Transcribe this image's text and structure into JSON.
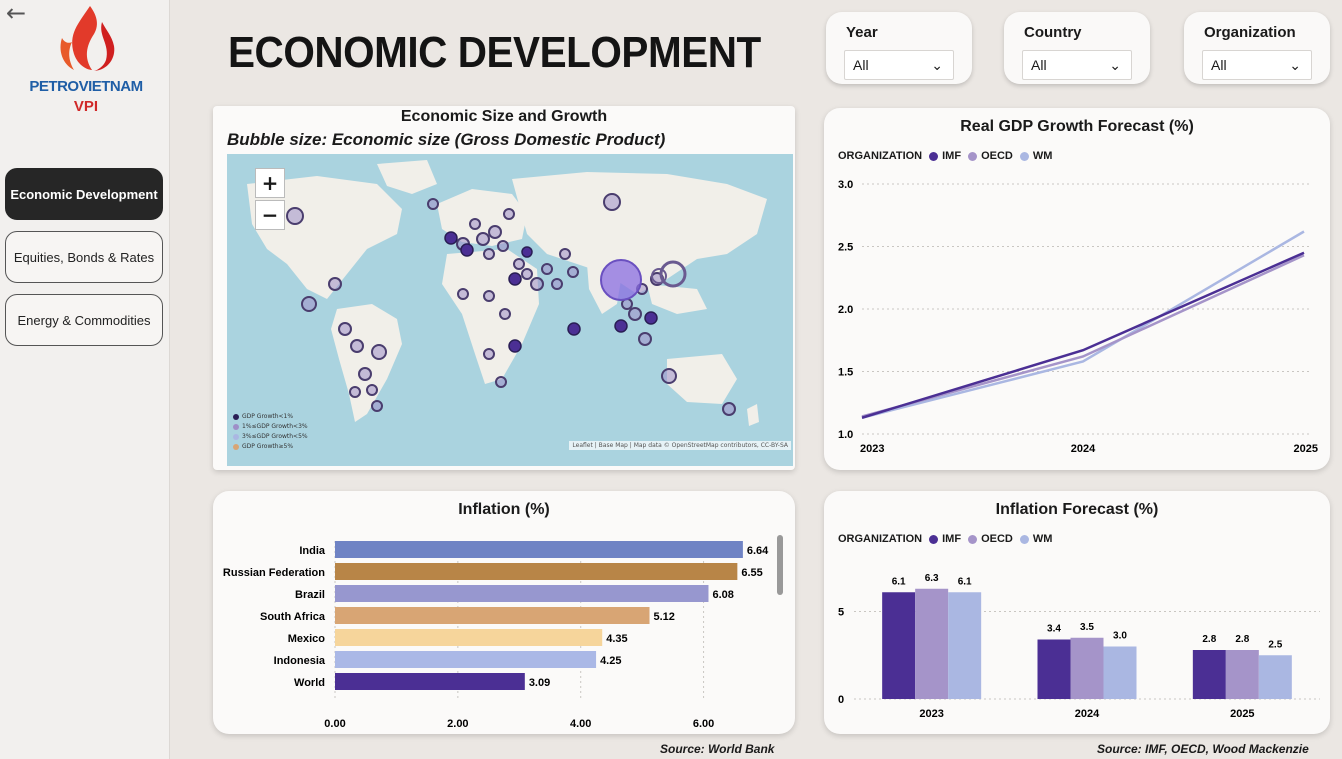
{
  "brand": {
    "name": "PETROVIETNAM",
    "sub": "VPI"
  },
  "nav": [
    {
      "label": "Economic Development",
      "active": true
    },
    {
      "label": "Equities, Bonds & Rates",
      "active": false
    },
    {
      "label": "Energy & Commodities",
      "active": false
    }
  ],
  "page_title": "ECONOMIC DEVELOPMENT",
  "filters": [
    {
      "label": "Year",
      "value": "All"
    },
    {
      "label": "Country",
      "value": "All"
    },
    {
      "label": "Organization",
      "value": "All"
    }
  ],
  "map": {
    "title": "Economic Size and Growth",
    "subtitle": "Bubble size: Economic size (Gross Domestic Product)",
    "legend": [
      "GDP Growth<1%",
      "1%≤GDP Growth<3%",
      "3%≤GDP Growth<5%",
      "GDP Growth≥5%"
    ],
    "attribution": "Leaflet | Base Map | Map data © OpenStreetMap contributors, CC-BY-SA",
    "zoom_in": "+",
    "zoom_out": "−"
  },
  "gdp_forecast": {
    "title": "Real GDP Growth Forecast (%)",
    "legend_label": "ORGANIZATION",
    "colors": {
      "IMF": "#4b2f94",
      "OECD": "#a594c9",
      "WM": "#aab7e2"
    }
  },
  "inflation_bar": {
    "title": "Inflation (%)",
    "source": "Source: World Bank"
  },
  "inflation_forecast": {
    "title": "Inflation Forecast (%)",
    "legend_label": "ORGANIZATION",
    "source": "Source: IMF, OECD, Wood Mackenzie"
  },
  "chart_data": [
    {
      "type": "line",
      "title": "Real GDP Growth Forecast (%)",
      "x": [
        "2023",
        "2024",
        "2025"
      ],
      "ylim": [
        1.0,
        3.0
      ],
      "yticks": [
        "1.0",
        "1.5",
        "2.0",
        "2.5",
        "3.0"
      ],
      "series": [
        {
          "name": "IMF",
          "values": [
            1.13,
            1.67,
            2.45
          ]
        },
        {
          "name": "OECD",
          "values": [
            1.14,
            1.62,
            2.43
          ]
        },
        {
          "name": "WM",
          "values": [
            1.13,
            1.58,
            2.62
          ]
        }
      ],
      "grid": true,
      "legend": "top-left"
    },
    {
      "type": "bar",
      "orientation": "horizontal",
      "title": "Inflation (%)",
      "categories": [
        "India",
        "Russian Federation",
        "Brazil",
        "South Africa",
        "Mexico",
        "Indonesia",
        "World"
      ],
      "values": [
        6.64,
        6.55,
        6.08,
        5.12,
        4.35,
        4.25,
        3.09
      ],
      "labels": [
        "6.64",
        "6.55",
        "6.08",
        "5.12",
        "4.35",
        "4.25",
        "3.09"
      ],
      "colors": [
        "#6f83c4",
        "#b88547",
        "#9797cf",
        "#d8a574",
        "#f6d59b",
        "#aab8e6",
        "#4b2f94"
      ],
      "xlim": [
        0,
        7
      ],
      "xticks": [
        "0.00",
        "2.00",
        "4.00",
        "6.00"
      ]
    },
    {
      "type": "bar",
      "title": "Inflation Forecast (%)",
      "categories": [
        "2023",
        "2024",
        "2025"
      ],
      "series": [
        {
          "name": "IMF",
          "values": [
            6.1,
            3.4,
            2.8
          ],
          "labels": [
            "6.1",
            "3.4",
            "2.8"
          ]
        },
        {
          "name": "OECD",
          "values": [
            6.3,
            3.5,
            2.8
          ],
          "labels": [
            "6.3",
            "3.5",
            "2.8"
          ]
        },
        {
          "name": "WM",
          "values": [
            6.1,
            3.0,
            2.5
          ],
          "labels": [
            "6.1",
            "3.0",
            "2.5"
          ]
        }
      ],
      "ylim": [
        0,
        8
      ],
      "yticks": [
        "0",
        "5"
      ],
      "legend": "top-left"
    }
  ]
}
